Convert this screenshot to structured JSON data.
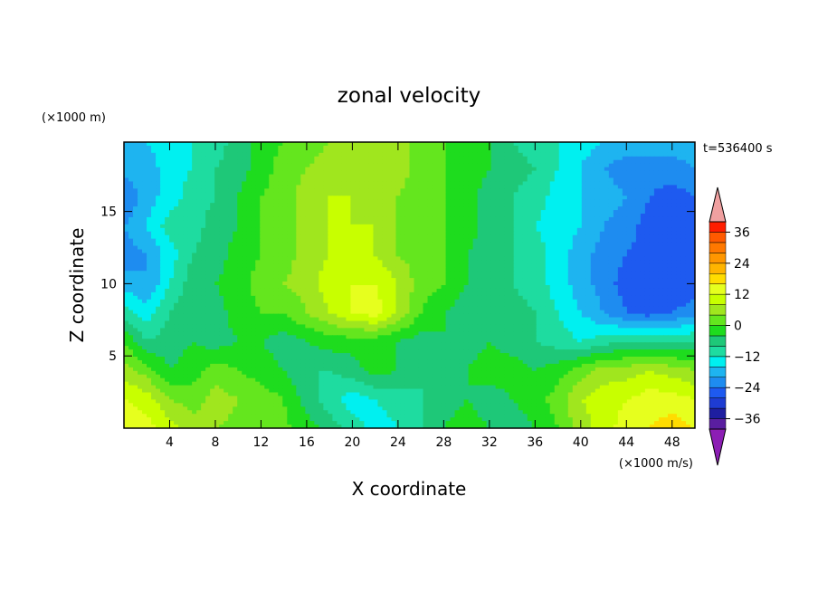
{
  "chart_data": {
    "type": "heatmap",
    "title": "zonal velocity",
    "xlabel": "X coordinate",
    "ylabel": "Z coordinate",
    "x_unit": "(×1000 m/s)",
    "y_unit": "(×1000 m)",
    "time_label": "t=536400 s",
    "xlim": [
      0,
      50
    ],
    "ylim": [
      0,
      19.8
    ],
    "x_ticks": [
      4,
      8,
      12,
      16,
      20,
      24,
      28,
      32,
      36,
      40,
      44,
      48
    ],
    "y_ticks": [
      5,
      10,
      15
    ],
    "colorbar": {
      "levels": [
        -40,
        -36,
        -32,
        -28,
        -24,
        -20,
        -16,
        -12,
        -8,
        -4,
        0,
        4,
        8,
        12,
        16,
        20,
        24,
        28,
        32,
        36,
        40
      ],
      "tick_values": [
        -36,
        -24,
        -12,
        0,
        12,
        24,
        36
      ],
      "tick_labels": [
        "−36",
        "−24",
        "−12",
        "0",
        "12",
        "24",
        "36"
      ],
      "colors": [
        "#5a1ea0",
        "#1e1ea0",
        "#1e3cd2",
        "#1e5af0",
        "#1e8cf0",
        "#1eb4f0",
        "#00f0f0",
        "#1edca0",
        "#1ec878",
        "#1edc1e",
        "#64e61e",
        "#a0e61e",
        "#c8ff00",
        "#e6ff1e",
        "#ffdc00",
        "#ffb400",
        "#ff9600",
        "#ff7800",
        "#ff5a00",
        "#ff1e00"
      ],
      "under_color": "#8c1eb4",
      "over_color": "#f0a0a0"
    },
    "field": {
      "nx": 26,
      "nz": 11,
      "x": [
        0,
        2,
        4,
        6,
        8,
        10,
        12,
        14,
        16,
        18,
        20,
        22,
        24,
        26,
        28,
        30,
        32,
        34,
        36,
        38,
        40,
        42,
        44,
        46,
        48,
        50
      ],
      "z": [
        0,
        2,
        4,
        6,
        8,
        10,
        12,
        14,
        16,
        18,
        19.8
      ],
      "values": [
        [
          16,
          14,
          10,
          6,
          4,
          3,
          2,
          1,
          -2,
          -6,
          -10,
          -14,
          -12,
          -8,
          -4,
          -2,
          -4,
          -6,
          -4,
          0,
          6,
          10,
          14,
          16,
          18,
          16
        ],
        [
          12,
          10,
          4,
          2,
          6,
          4,
          2,
          0,
          -6,
          -10,
          -14,
          -12,
          -10,
          -8,
          -6,
          -4,
          -6,
          -4,
          -2,
          2,
          8,
          10,
          12,
          14,
          14,
          12
        ],
        [
          6,
          2,
          -4,
          -2,
          2,
          0,
          -2,
          -4,
          -8,
          -8,
          -6,
          -2,
          -4,
          -8,
          -6,
          -4,
          -2,
          -2,
          -4,
          -2,
          2,
          6,
          6,
          8,
          6,
          4
        ],
        [
          0,
          -8,
          -6,
          -4,
          -6,
          -4,
          -4,
          -6,
          -4,
          -2,
          -2,
          -2,
          -4,
          -6,
          -4,
          -6,
          -4,
          -6,
          -8,
          -10,
          -12,
          -10,
          -8,
          -8,
          -8,
          -8
        ],
        [
          -10,
          -14,
          -8,
          -4,
          -6,
          -2,
          0,
          0,
          4,
          8,
          12,
          14,
          8,
          0,
          -4,
          -6,
          -6,
          -6,
          -8,
          -12,
          -16,
          -20,
          -24,
          -26,
          -24,
          -22
        ],
        [
          -18,
          -20,
          -12,
          -6,
          -4,
          -2,
          2,
          4,
          6,
          10,
          12,
          12,
          8,
          2,
          0,
          -4,
          -6,
          -8,
          -10,
          -14,
          -18,
          -22,
          -26,
          -28,
          -28,
          -26
        ],
        [
          -22,
          -20,
          -14,
          -8,
          -6,
          -2,
          0,
          2,
          6,
          8,
          10,
          8,
          4,
          2,
          0,
          -4,
          -6,
          -8,
          -10,
          -14,
          -18,
          -22,
          -24,
          -26,
          -26,
          -24
        ],
        [
          -20,
          -16,
          -10,
          -10,
          -6,
          -4,
          0,
          2,
          6,
          8,
          8,
          8,
          4,
          2,
          0,
          -2,
          -6,
          -8,
          -12,
          -14,
          -16,
          -20,
          -22,
          -26,
          -28,
          -26
        ],
        [
          -24,
          -18,
          -14,
          -10,
          -8,
          -4,
          0,
          2,
          6,
          8,
          8,
          6,
          4,
          2,
          0,
          -2,
          -6,
          -8,
          -10,
          -14,
          -16,
          -18,
          -20,
          -24,
          -26,
          -24
        ],
        [
          -18,
          -18,
          -14,
          -12,
          -8,
          -6,
          -2,
          2,
          4,
          6,
          8,
          6,
          6,
          2,
          0,
          -2,
          -4,
          -6,
          -8,
          -12,
          -16,
          -20,
          -22,
          -22,
          -22,
          -20
        ],
        [
          -16,
          -16,
          -14,
          -12,
          -10,
          -6,
          -2,
          0,
          2,
          4,
          6,
          6,
          6,
          2,
          0,
          -2,
          -4,
          -8,
          -10,
          -12,
          -14,
          -16,
          -18,
          -18,
          -18,
          -16
        ]
      ]
    }
  }
}
